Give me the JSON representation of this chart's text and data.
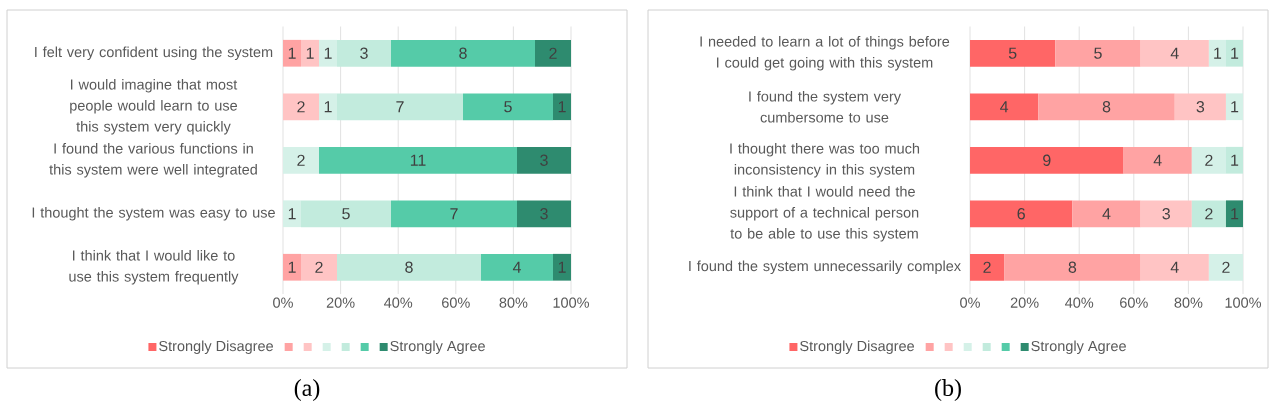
{
  "chart_data": [
    {
      "type": "bar",
      "orientation": "horizontal",
      "stacked": true,
      "grid": "x",
      "legend": "bottom",
      "categories": [
        "I felt very confident using the system",
        "I would imagine that most people would learn to use this system very quickly",
        "I found the various functions in this system were well integrated",
        "I thought the system was easy to use",
        "I think that I would like to use this system frequently"
      ],
      "xlim": [
        0,
        100
      ],
      "xticks": [
        {
          "value": 0,
          "label": "0%"
        },
        {
          "value": 20,
          "label": "20%"
        },
        {
          "value": 40,
          "label": "40%"
        },
        {
          "value": 60,
          "label": "60%"
        },
        {
          "value": 80,
          "label": "80%"
        },
        {
          "value": 100,
          "label": "100%"
        }
      ],
      "series": [
        {
          "name": "Strongly Disagree",
          "color": "#ff6666",
          "values": [
            null,
            null,
            null,
            null,
            null
          ]
        },
        {
          "color": "#ffa3a3",
          "values": [
            6.25,
            null,
            null,
            null,
            6.25
          ]
        },
        {
          "color": "#ffc4c4",
          "values": [
            6.25,
            12.5,
            null,
            null,
            12.5
          ]
        },
        {
          "color": "#d5f1e8",
          "values": [
            6.25,
            6.25,
            12.5,
            6.25,
            null
          ]
        },
        {
          "color": "#c2ebdd",
          "values": [
            18.75,
            43.75,
            null,
            31.25,
            50
          ]
        },
        {
          "color": "#55cba8",
          "values": [
            50,
            31.25,
            68.75,
            43.75,
            25
          ]
        },
        {
          "name": "Strongly Agree",
          "color": "#2e8b6f",
          "values": [
            12.5,
            6.25,
            18.75,
            18.75,
            6.25
          ]
        }
      ],
      "annotations": [
        "(a)",
        "1",
        "1",
        "1",
        "3",
        "8",
        "2",
        "2",
        "1",
        "7",
        "5",
        "1",
        "2",
        "11",
        "3",
        "1",
        "5",
        "7",
        "3",
        "1",
        "2",
        "8",
        "4",
        "1"
      ]
    },
    {
      "type": "bar",
      "orientation": "horizontal",
      "stacked": true,
      "grid": "x",
      "legend": "bottom",
      "categories": [
        "I needed to learn a lot of things before I could get going with this system",
        "I found the system very cumbersome to use",
        "I thought there was too much inconsistency in this system",
        "I think that I would need the support of a technical person to be able to use this system",
        "I found the system unnecessarily complex"
      ],
      "xlim": [
        0,
        100
      ],
      "xticks": [
        {
          "value": 0,
          "label": "0%"
        },
        {
          "value": 20,
          "label": "20%"
        },
        {
          "value": 40,
          "label": "40%"
        },
        {
          "value": 60,
          "label": "60%"
        },
        {
          "value": 80,
          "label": "80%"
        },
        {
          "value": 100,
          "label": "100%"
        }
      ],
      "series": [
        {
          "name": "Strongly Disagree",
          "color": "#ff6666",
          "values": [
            31.25,
            25,
            56.25,
            37.5,
            12.5
          ]
        },
        {
          "color": "#ffa3a3",
          "values": [
            31.25,
            50,
            25,
            25,
            50
          ]
        },
        {
          "color": "#ffc4c4",
          "values": [
            25,
            18.75,
            null,
            18.75,
            25
          ]
        },
        {
          "color": "#d5f1e8",
          "values": [
            6.25,
            6.25,
            12.5,
            null,
            12.5
          ]
        },
        {
          "color": "#c2ebdd",
          "values": [
            6.25,
            null,
            6.25,
            12.5,
            null
          ]
        },
        {
          "color": "#55cba8",
          "values": [
            null,
            null,
            null,
            null,
            null
          ]
        },
        {
          "name": "Strongly Agree",
          "color": "#2e8b6f",
          "values": [
            null,
            null,
            null,
            6.25,
            null
          ]
        }
      ],
      "annotations": [
        "(b)",
        "5",
        "5",
        "4",
        "1",
        "1",
        "4",
        "8",
        "3",
        "1",
        "9",
        "4",
        "2",
        "1",
        "6",
        "4",
        "3",
        "2",
        "1",
        "2",
        "8",
        "4",
        "2"
      ]
    }
  ]
}
